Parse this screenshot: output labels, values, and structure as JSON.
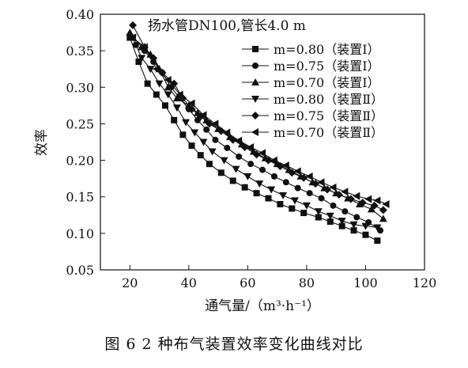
{
  "caption": "图 6   2 种布气装置效率变化曲线对比",
  "chart_data": {
    "type": "line",
    "title": "扬水管DN100,管长4.0 m",
    "xlabel": "通气量/（m³·h⁻¹）",
    "ylabel": "效率",
    "xlim": [
      10,
      120
    ],
    "ylim": [
      0.05,
      0.4
    ],
    "xticks": [
      20,
      40,
      60,
      80,
      100,
      120
    ],
    "yticks": [
      0.05,
      0.1,
      0.15,
      0.2,
      0.25,
      0.3,
      0.35,
      0.4
    ],
    "ytick_labels": [
      "0.05",
      "0.10",
      "0.15",
      "0.20",
      "0.25",
      "0.30",
      "0.35",
      "0.40"
    ],
    "legend_position": "top-right",
    "series": [
      {
        "name": "m=0.80（装置Ⅰ）",
        "marker": "square",
        "x": [
          20,
          23,
          26,
          29,
          32,
          35,
          38,
          41,
          44,
          47,
          51,
          55,
          59,
          63,
          67,
          71,
          75,
          79,
          84,
          88,
          92,
          96,
          100,
          104
        ],
        "y": [
          0.368,
          0.335,
          0.305,
          0.29,
          0.275,
          0.255,
          0.235,
          0.22,
          0.207,
          0.195,
          0.183,
          0.172,
          0.163,
          0.155,
          0.148,
          0.14,
          0.134,
          0.128,
          0.122,
          0.116,
          0.11,
          0.104,
          0.098,
          0.09
        ]
      },
      {
        "name": "m=0.75（装置Ⅰ）",
        "marker": "circle",
        "x": [
          22,
          25,
          28,
          31,
          34,
          37,
          40,
          43,
          46,
          49,
          53,
          57,
          61,
          65,
          69,
          73,
          77,
          81,
          85,
          89,
          93,
          97,
          101,
          105
        ],
        "y": [
          0.358,
          0.35,
          0.335,
          0.32,
          0.3,
          0.285,
          0.27,
          0.255,
          0.242,
          0.228,
          0.217,
          0.205,
          0.195,
          0.187,
          0.178,
          0.17,
          0.162,
          0.155,
          0.148,
          0.138,
          0.13,
          0.122,
          0.115,
          0.104
        ]
      },
      {
        "name": "m=0.70（装置Ⅰ）",
        "marker": "triangle-up",
        "x": [
          20,
          24,
          27,
          30,
          33,
          36,
          40,
          43,
          46,
          50,
          54,
          58,
          62,
          66,
          70,
          74,
          78,
          82,
          86,
          90,
          94,
          98,
          102,
          106
        ],
        "y": [
          0.375,
          0.355,
          0.345,
          0.325,
          0.3,
          0.285,
          0.275,
          0.265,
          0.255,
          0.243,
          0.232,
          0.222,
          0.212,
          0.203,
          0.195,
          0.187,
          0.178,
          0.17,
          0.162,
          0.155,
          0.148,
          0.14,
          0.133,
          0.12
        ]
      },
      {
        "name": "m=0.80（装置Ⅱ）",
        "marker": "triangle-down",
        "x": [
          21,
          24,
          27,
          30,
          33,
          36,
          39,
          42,
          45,
          48,
          52,
          56,
          60,
          64,
          68,
          72,
          76,
          80,
          84,
          88,
          92,
          96,
          100,
          104
        ],
        "y": [
          0.368,
          0.34,
          0.325,
          0.305,
          0.29,
          0.272,
          0.252,
          0.238,
          0.225,
          0.212,
          0.2,
          0.188,
          0.178,
          0.168,
          0.16,
          0.152,
          0.145,
          0.138,
          0.13,
          0.124,
          0.117,
          0.112,
          0.11,
          0.108
        ]
      },
      {
        "name": "m=0.75（装置Ⅱ）",
        "marker": "diamond",
        "x": [
          21,
          25,
          28,
          31,
          35,
          38,
          41,
          44,
          47,
          51,
          55,
          59,
          63,
          67,
          71,
          75,
          79,
          83,
          87,
          91,
          95,
          99,
          103,
          106
        ],
        "y": [
          0.385,
          0.355,
          0.34,
          0.32,
          0.305,
          0.285,
          0.27,
          0.26,
          0.25,
          0.24,
          0.228,
          0.218,
          0.208,
          0.2,
          0.192,
          0.183,
          0.176,
          0.168,
          0.16,
          0.153,
          0.147,
          0.142,
          0.138,
          0.132
        ]
      },
      {
        "name": "m=0.70（装置Ⅱ）",
        "marker": "triangle-left",
        "x": [
          21,
          25,
          29,
          33,
          37,
          41,
          45,
          49,
          53,
          57,
          61,
          65,
          69,
          73,
          77,
          81,
          85,
          89,
          93,
          97,
          101,
          104,
          107
        ],
        "y": [
          0.368,
          0.355,
          0.325,
          0.31,
          0.29,
          0.278,
          0.262,
          0.25,
          0.238,
          0.227,
          0.218,
          0.21,
          0.2,
          0.193,
          0.185,
          0.178,
          0.17,
          0.163,
          0.157,
          0.151,
          0.147,
          0.145,
          0.14
        ]
      }
    ]
  }
}
